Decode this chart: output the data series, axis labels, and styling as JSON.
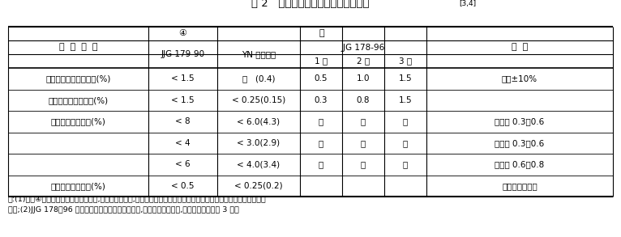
{
  "title": "表 2   土壤养分速测仪达到的性能指标",
  "title_superscript": "[3,4]",
  "background_color": "#ffffff",
  "text_color": "#000000",
  "note_line1": "注:(1)表中④栏左列数据为厂家保证数据,引自产品说明书,右列括弧中数据引自计量器具样机试验合格证书样机试验结果通",
  "note_line2": "知书;(2)JJG 178－96 为最新分光光度计国家检定规程,为光栅型精度等级,棱镜型要求同光栅 3 类。",
  "col_headers": {
    "perf_indicator": "性  能  指  标",
    "jjg179": "JJG 179-90",
    "yn": "YN 型土肥仪",
    "class1": "1 类",
    "class2": "2 类",
    "class3": "3 类",
    "remark": "备  注",
    "group4": "④",
    "groupm": "㎜",
    "jjg178": "JJG 178-96"
  },
  "rows": [
    {
      "indicator": "电压变动时稳定性误差(%)",
      "jjg179": "< 1.5",
      "yn": "－   (0.4)",
      "class1": "0.5",
      "class2": "1.0",
      "class3": "1.5",
      "remark": "电压±10%"
    },
    {
      "indicator": "仪器工作稳定性误差(%)",
      "jjg179": "< 1.5",
      "yn": "< 0.25(0.15)",
      "class1": "0.3",
      "class2": "0.8",
      "class3": "1.5",
      "remark": ""
    },
    {
      "indicator": "仪器线性相对误差(%)",
      "jjg179": "< 8",
      "yn": "< 6.0(4.3)",
      "class1": "－",
      "class2": "－",
      "class3": "－",
      "remark": "吸光度 0.3～0.6"
    },
    {
      "indicator": "",
      "jjg179": "< 4",
      "yn": "< 3.0(2.9)",
      "class1": "－",
      "class2": "－",
      "class3": "－",
      "remark": "吸光度 0.3～0.6"
    },
    {
      "indicator": "",
      "jjg179": "< 6",
      "yn": "< 4.0(3.4)",
      "class1": "－",
      "class2": "－",
      "class3": "－",
      "remark": "吸光度 0.6～0.8"
    },
    {
      "indicator": "仪器的重复性误差(%)",
      "jjg179": "< 0.5",
      "yn": "< 0.25(0.2)",
      "class1": "",
      "class2": "",
      "class3": "",
      "remark": "用硫酸铜液测定"
    }
  ]
}
